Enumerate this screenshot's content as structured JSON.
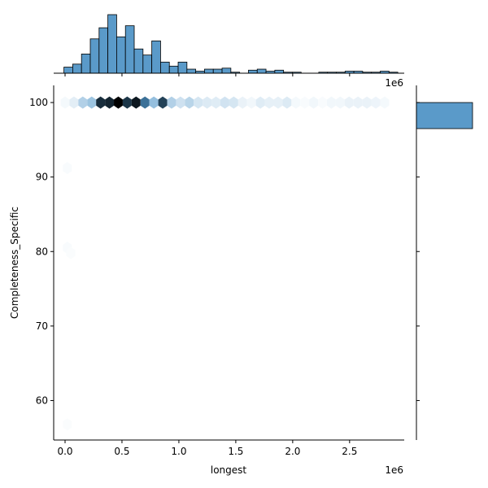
{
  "chart_data": {
    "type": "jointplot-hexbin",
    "x_label": "longest",
    "y_label": "Completeness_Specific",
    "x_offset_label": "1e6",
    "x_lim": [
      -0.1,
      2.98
    ],
    "y_lim": [
      54.7,
      102.3
    ],
    "x_ticks": [
      0.0,
      0.5,
      1.0,
      1.5,
      2.0,
      2.5
    ],
    "x_tick_labels": [
      "0.0",
      "0.5",
      "1.0",
      "1.5",
      "2.0",
      "2.5"
    ],
    "y_ticks": [
      60,
      70,
      80,
      90,
      100
    ],
    "y_tick_labels": [
      "60",
      "70",
      "80",
      "90",
      "100"
    ],
    "grid": false,
    "color_base": "#1f77b4",
    "hex_marker_color": "#4f95c8",
    "hexbin": {
      "y_center": 100,
      "x_centers": [
        0.0,
        0.078,
        0.156,
        0.234,
        0.312,
        0.39,
        0.468,
        0.546,
        0.624,
        0.702,
        0.78,
        0.858,
        0.936,
        1.014,
        1.092,
        1.17,
        1.248,
        1.326,
        1.404,
        1.482,
        1.56,
        1.638,
        1.716,
        1.794,
        1.872,
        1.95,
        2.028,
        2.106,
        2.184,
        2.262,
        2.34,
        2.418,
        2.496,
        2.574,
        2.652,
        2.73,
        2.808
      ],
      "intensity": [
        0.03,
        0.08,
        0.22,
        0.28,
        0.85,
        0.88,
        1.0,
        0.82,
        0.92,
        0.62,
        0.3,
        0.78,
        0.22,
        0.14,
        0.2,
        0.12,
        0.1,
        0.09,
        0.13,
        0.12,
        0.06,
        0.04,
        0.09,
        0.07,
        0.07,
        0.1,
        0.03,
        0.02,
        0.04,
        0.02,
        0.04,
        0.04,
        0.06,
        0.06,
        0.06,
        0.05,
        0.03
      ],
      "outliers": [
        {
          "x": 0.02,
          "y": 91.2,
          "intensity": 0.02
        },
        {
          "x": 0.02,
          "y": 80.5,
          "intensity": 0.02
        },
        {
          "x": 0.05,
          "y": 79.8,
          "intensity": 0.015
        },
        {
          "x": 0.02,
          "y": 56.8,
          "intensity": 0.015
        }
      ]
    },
    "marginal_x": {
      "bin_start": -0.01,
      "bin_width": 0.0772,
      "counts": [
        6,
        9,
        19,
        34,
        45,
        58,
        36,
        47,
        24,
        18,
        32,
        11,
        7,
        11,
        4,
        2,
        4,
        4,
        5,
        1,
        0,
        3,
        4,
        2,
        3,
        1,
        1,
        0,
        0,
        1,
        1,
        1,
        2,
        2,
        1,
        1,
        2,
        1
      ]
    },
    "marginal_y": {
      "bins": [
        {
          "y_from": 96.5,
          "y_to": 100.0,
          "count": 1
        }
      ]
    }
  }
}
